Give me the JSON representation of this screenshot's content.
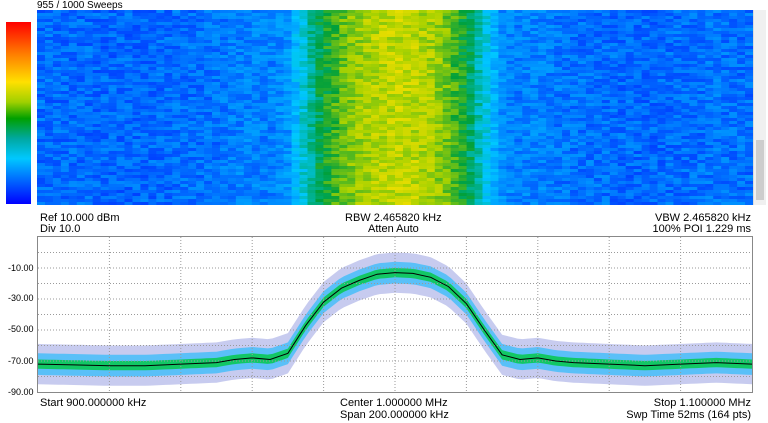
{
  "sweep_counter": "955 / 1000 Sweeps",
  "header": {
    "ref": "Ref 10.000 dBm",
    "div": "Div 10.0",
    "rbw": "RBW 2.465820 kHz",
    "atten": "Atten Auto",
    "vbw": "VBW 2.465820 kHz",
    "poi": "100% POI 1.229 ms"
  },
  "footer": {
    "start": "Start 900.000000 kHz",
    "center": "Center 1.000000 MHz",
    "span": "Span 200.000000 kHz",
    "stop": "Stop 1.100000 MHz",
    "swp_time": "Swp Time 52ms (164 pts)"
  },
  "y_ticks": [
    "-10.00",
    "-30.00",
    "-50.00",
    "-70.00",
    "-90.00"
  ],
  "chart_data": {
    "type": "line",
    "x_unit": "kHz",
    "y_unit": "dBm",
    "xlim": [
      900,
      1100
    ],
    "ylim": [
      -90,
      10
    ],
    "grid": true,
    "x": [
      900,
      910,
      920,
      930,
      940,
      950,
      955,
      960,
      965,
      970,
      975,
      980,
      985,
      990,
      995,
      1000,
      1005,
      1010,
      1015,
      1020,
      1025,
      1030,
      1035,
      1040,
      1045,
      1050,
      1060,
      1070,
      1080,
      1090,
      1100
    ],
    "series": [
      {
        "values": [
          -72,
          -72.5,
          -73,
          -73,
          -72,
          -71,
          -69,
          -68,
          -69,
          -65,
          -47,
          -32,
          -23,
          -18,
          -14,
          -13,
          -13.5,
          -16,
          -22,
          -33,
          -50,
          -66,
          -69,
          -68,
          -70,
          -71,
          -72,
          -73,
          -72,
          -71,
          -72
        ]
      }
    ]
  },
  "colors": {
    "waterfall_colormap": [
      "#0000ff",
      "#00c8ff",
      "#00a000",
      "#ffe000",
      "#ff8000",
      "#ff0000"
    ],
    "trace": "#000000",
    "grid": "#9a9a9a"
  }
}
